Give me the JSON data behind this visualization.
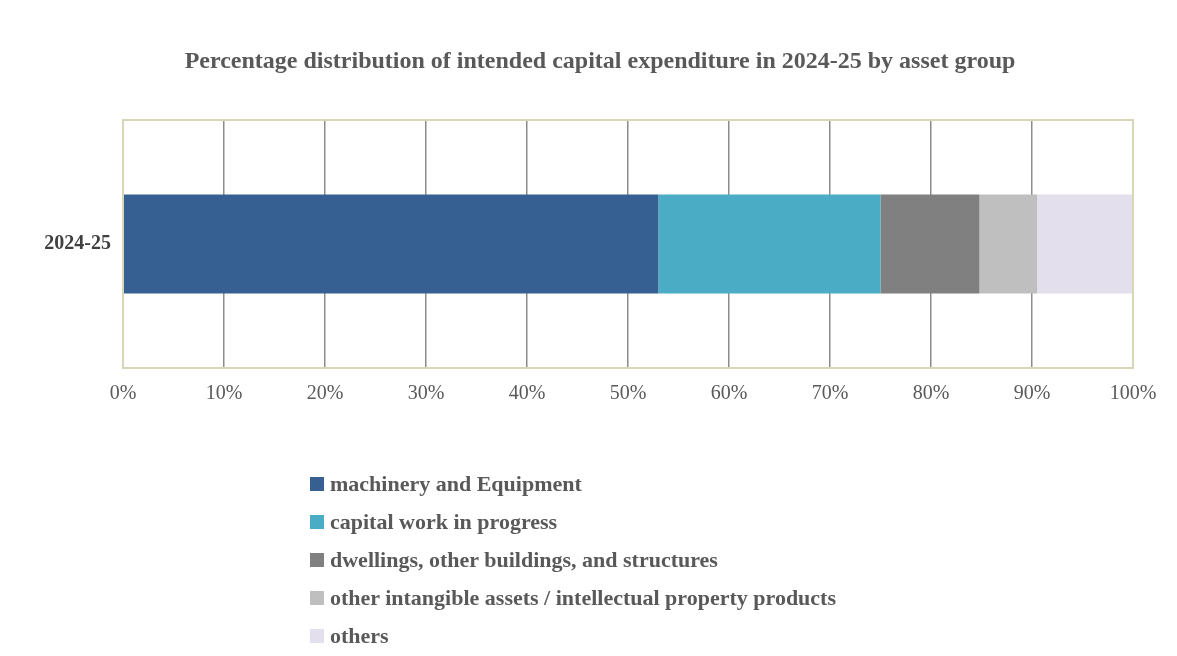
{
  "chart_data": {
    "type": "bar",
    "orientation": "horizontal",
    "stacked": true,
    "title": "Percentage distribution of intended capital expenditure in 2024-25 by asset group",
    "categories": [
      "2024-25"
    ],
    "series": [
      {
        "name": "machinery and Equipment",
        "color": "#366092",
        "values": [
          53.0
        ]
      },
      {
        "name": "capital work in progress",
        "color": "#4bacc6",
        "values": [
          22.0
        ]
      },
      {
        "name": "dwellings, other buildings, and structures",
        "color": "#808080",
        "values": [
          9.8
        ]
      },
      {
        "name": "other intangible assets / intellectual property products",
        "color": "#bfbfbf",
        "values": [
          5.7
        ]
      },
      {
        "name": "others",
        "color": "#e4dfec",
        "values": [
          9.5
        ]
      }
    ],
    "xlim": [
      0,
      100
    ],
    "xticks": [
      {
        "value": 0,
        "label": "0%"
      },
      {
        "value": 10,
        "label": "10%"
      },
      {
        "value": 20,
        "label": "20%"
      },
      {
        "value": 30,
        "label": "30%"
      },
      {
        "value": 40,
        "label": "40%"
      },
      {
        "value": 50,
        "label": "50%"
      },
      {
        "value": 60,
        "label": "60%"
      },
      {
        "value": 70,
        "label": "70%"
      },
      {
        "value": 80,
        "label": "80%"
      },
      {
        "value": 90,
        "label": "90%"
      },
      {
        "value": 100,
        "label": "100%"
      }
    ],
    "grid": "x",
    "legend": "bottom"
  }
}
